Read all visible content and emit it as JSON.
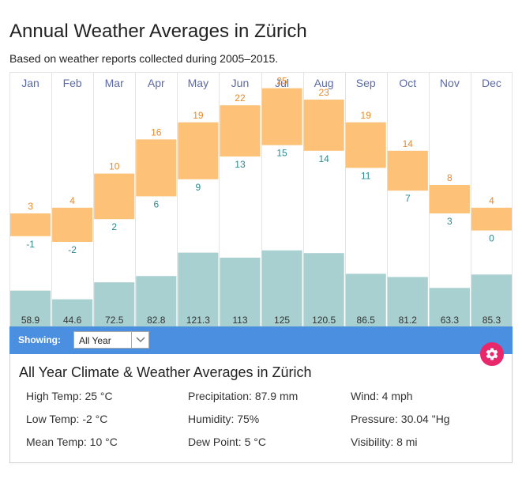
{
  "header": {
    "title": "Annual Weather Averages in Zürich",
    "subtitle": "Based on weather reports collected during 2005–2015."
  },
  "chart_data": {
    "type": "bar",
    "title": "Annual Weather Averages in Zürich",
    "categories": [
      "Jan",
      "Feb",
      "Mar",
      "Apr",
      "May",
      "Jun",
      "Jul",
      "Aug",
      "Sep",
      "Oct",
      "Nov",
      "Dec"
    ],
    "series": [
      {
        "name": "High Temp (°C)",
        "values": [
          3,
          4,
          10,
          16,
          19,
          22,
          25,
          23,
          19,
          14,
          8,
          4
        ]
      },
      {
        "name": "Low Temp (°C)",
        "values": [
          -1,
          -2,
          2,
          6,
          9,
          13,
          15,
          14,
          11,
          7,
          3,
          0
        ]
      },
      {
        "name": "Precipitation (mm)",
        "values": [
          58.9,
          44.6,
          72.5,
          82.8,
          121.3,
          113,
          125,
          120.5,
          86.5,
          81.2,
          63.3,
          85.3
        ]
      }
    ],
    "temp_range": [
      -2,
      25
    ],
    "precip_range": [
      0,
      125
    ],
    "grid": true
  },
  "filter": {
    "label": "Showing:",
    "selected": "All Year"
  },
  "summary": {
    "title": "All Year Climate & Weather Averages in Zürich",
    "stats": [
      "High Temp: 25 °C",
      "Precipitation: 87.9 mm",
      "Wind: 4 mph",
      "Low Temp: -2 °C",
      "Humidity: 75%",
      "Pressure: 30.04 \"Hg",
      "Mean Temp: 10 °C",
      "Dew Point: 5 °C",
      "Visibility: 8 mi"
    ]
  },
  "colors": {
    "temp_bar": "#fec178",
    "precip_bar": "#a8d0d0",
    "high_label": "#e8882a",
    "low_label": "#2a8a8e",
    "month_label": "#5b6aa8",
    "precip_label": "#333333",
    "grid_line": "#e4e4e4",
    "filter_bg": "#4a8fe0",
    "settings_button": "#e8286a"
  },
  "icons": {
    "settings": "gear-icon",
    "dropdown": "chevron-down-icon"
  }
}
